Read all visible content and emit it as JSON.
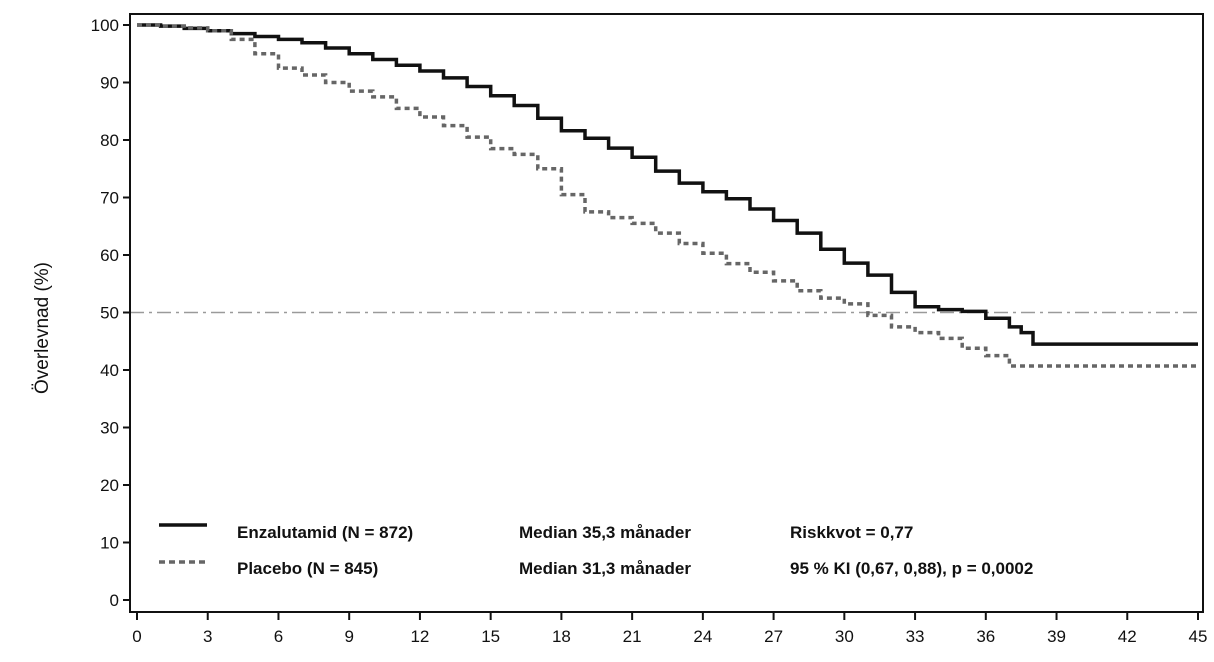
{
  "chart_data": {
    "type": "line",
    "title": "",
    "xlabel": "",
    "ylabel": "Överlevnad (%)",
    "xlim": [
      0,
      45
    ],
    "ylim": [
      0,
      100
    ],
    "x_ticks": [
      0,
      3,
      6,
      9,
      12,
      15,
      18,
      21,
      24,
      27,
      30,
      33,
      36,
      39,
      42,
      45
    ],
    "y_ticks": [
      0,
      10,
      20,
      30,
      40,
      50,
      60,
      70,
      80,
      90,
      100
    ],
    "grid": false,
    "reference_line": {
      "y": 50,
      "style": "dash-dot",
      "color": "#9a9a9a"
    },
    "series": [
      {
        "name": "Enzalutamid (N = 872)",
        "style": "solid",
        "color": "#111111",
        "x": [
          0,
          1,
          2,
          3,
          4,
          5,
          6,
          7,
          8,
          9,
          10,
          11,
          12,
          13,
          14,
          15,
          16,
          17,
          18,
          19,
          20,
          21,
          22,
          23,
          24,
          25,
          26,
          27,
          28,
          29,
          30,
          31,
          32,
          33,
          34,
          35,
          36,
          37,
          37.5,
          38,
          39,
          42,
          45
        ],
        "y": [
          100,
          99.8,
          99.4,
          99,
          98.5,
          98,
          97.5,
          96.9,
          96,
          95,
          94,
          93,
          92,
          90.8,
          89.3,
          87.7,
          86,
          83.8,
          81.6,
          80.3,
          78.6,
          77,
          74.6,
          72.5,
          71,
          69.8,
          68,
          66,
          63.8,
          61,
          58.6,
          56.5,
          53.5,
          51,
          50.5,
          50.2,
          49,
          47.5,
          46.5,
          44.5,
          44.5,
          44.5,
          44.5
        ]
      },
      {
        "name": "Placebo (N = 845)",
        "style": "dashed",
        "color": "#666666",
        "x": [
          0,
          1,
          2,
          3,
          4,
          5,
          6,
          7,
          8,
          9,
          10,
          11,
          12,
          13,
          14,
          15,
          16,
          17,
          18,
          19,
          20,
          21,
          22,
          23,
          24,
          25,
          26,
          27,
          28,
          29,
          30,
          31,
          32,
          33,
          34,
          35,
          36,
          37,
          39,
          42,
          45
        ],
        "y": [
          100,
          99.8,
          99.5,
          99,
          97.5,
          95,
          92.5,
          91.3,
          90,
          88.5,
          87.5,
          85.5,
          84,
          82.5,
          80.5,
          78.5,
          77.5,
          75,
          70.5,
          67.5,
          66.5,
          65.5,
          63.8,
          62,
          60.3,
          58.5,
          57,
          55.5,
          53.8,
          52.5,
          51.5,
          49.5,
          47.5,
          46.5,
          45.5,
          43.8,
          42.5,
          40.7,
          40.7,
          40.7,
          40.7
        ]
      }
    ],
    "legend": {
      "placement": "bottom-left",
      "rows": [
        {
          "series": "Enzalutamid (N = 872)",
          "median": "Median 35,3 månader",
          "stat": "Riskkvot = 0,77"
        },
        {
          "series": "Placebo (N = 845)",
          "median": "Median 31,3 månader",
          "stat": "95 % KI (0,67, 0,88), p = 0,0002"
        }
      ]
    }
  }
}
